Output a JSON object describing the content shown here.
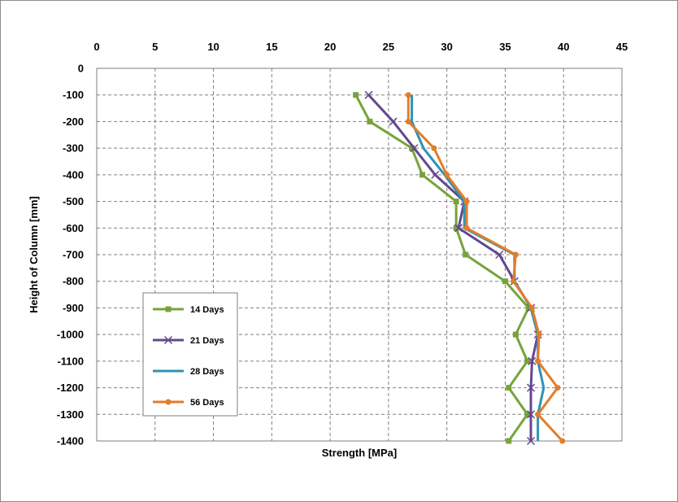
{
  "chart_data": {
    "type": "line",
    "title": "",
    "xlabel": "Strength [MPa]",
    "ylabel": "Height of Column [mm]",
    "xlim": [
      0,
      45
    ],
    "ylim": [
      -1400,
      0
    ],
    "x_ticks": [
      0,
      5,
      10,
      15,
      20,
      25,
      30,
      35,
      40,
      45
    ],
    "y_ticks": [
      0,
      -100,
      -200,
      -300,
      -400,
      -500,
      -600,
      -700,
      -800,
      -900,
      -1000,
      -1100,
      -1200,
      -1300,
      -1400
    ],
    "x_axis_position": "top",
    "grid": true,
    "legend_position": "lower-left",
    "heights": [
      -100,
      -200,
      -300,
      -400,
      -500,
      -600,
      -700,
      -800,
      -900,
      -1000,
      -1100,
      -1200,
      -1300,
      -1400
    ],
    "series": [
      {
        "name": "14 Days",
        "color": "#77a33a",
        "marker": "square",
        "values": [
          22.2,
          23.4,
          27.0,
          27.9,
          30.8,
          30.8,
          31.6,
          35.0,
          37.0,
          35.9,
          36.9,
          35.3,
          36.9,
          35.3
        ]
      },
      {
        "name": "21 Days",
        "color": "#64478f",
        "marker": "x",
        "values": [
          23.3,
          25.4,
          27.2,
          29.0,
          31.5,
          31.0,
          34.5,
          35.8,
          37.2,
          37.8,
          37.3,
          37.2,
          37.2,
          37.2
        ]
      },
      {
        "name": "28 Days",
        "color": "#2e93b5",
        "marker": "none",
        "values": [
          27.0,
          27.0,
          28.0,
          29.8,
          31.5,
          31.5,
          35.8,
          35.8,
          37.2,
          37.8,
          37.8,
          38.3,
          37.8,
          37.8
        ]
      },
      {
        "name": "56 Days",
        "color": "#e47d27",
        "marker": "circle",
        "values": [
          26.7,
          26.7,
          28.9,
          30.0,
          31.7,
          31.7,
          35.9,
          35.7,
          37.3,
          37.9,
          37.8,
          39.5,
          37.8,
          39.9
        ]
      }
    ]
  }
}
